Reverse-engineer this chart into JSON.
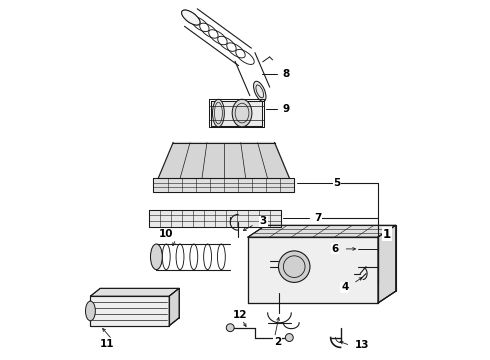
{
  "bg_color": "#ffffff",
  "line_color": "#1a1a1a",
  "label_color": "#000000",
  "lw": 0.75,
  "label_fontsize": 7.5
}
